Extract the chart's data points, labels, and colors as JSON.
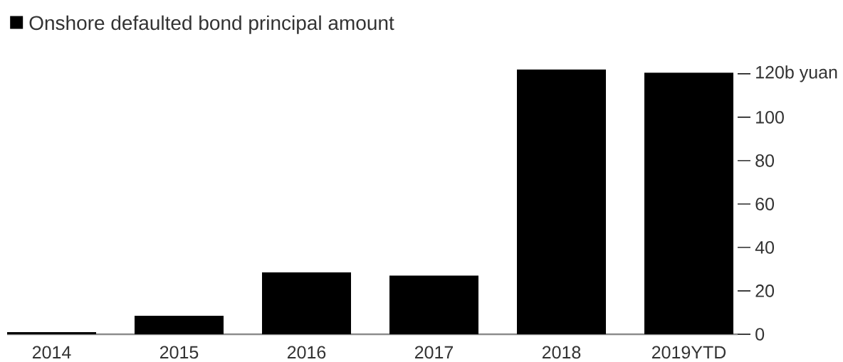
{
  "chart_data": {
    "type": "bar",
    "categories": [
      "2014",
      "2015",
      "2016",
      "2017",
      "2018",
      "2019YTD"
    ],
    "series": [
      {
        "name": "Onshore defaulted bond principal amount",
        "color": "#000000",
        "values": [
          1,
          8.5,
          28.5,
          27,
          122,
          120.5
        ]
      }
    ],
    "ylim": [
      0,
      122
    ],
    "yticks": [
      0,
      20,
      40,
      60,
      80,
      100,
      {
        "value": 120,
        "label": "120b yuan"
      }
    ],
    "legend": "top left"
  }
}
